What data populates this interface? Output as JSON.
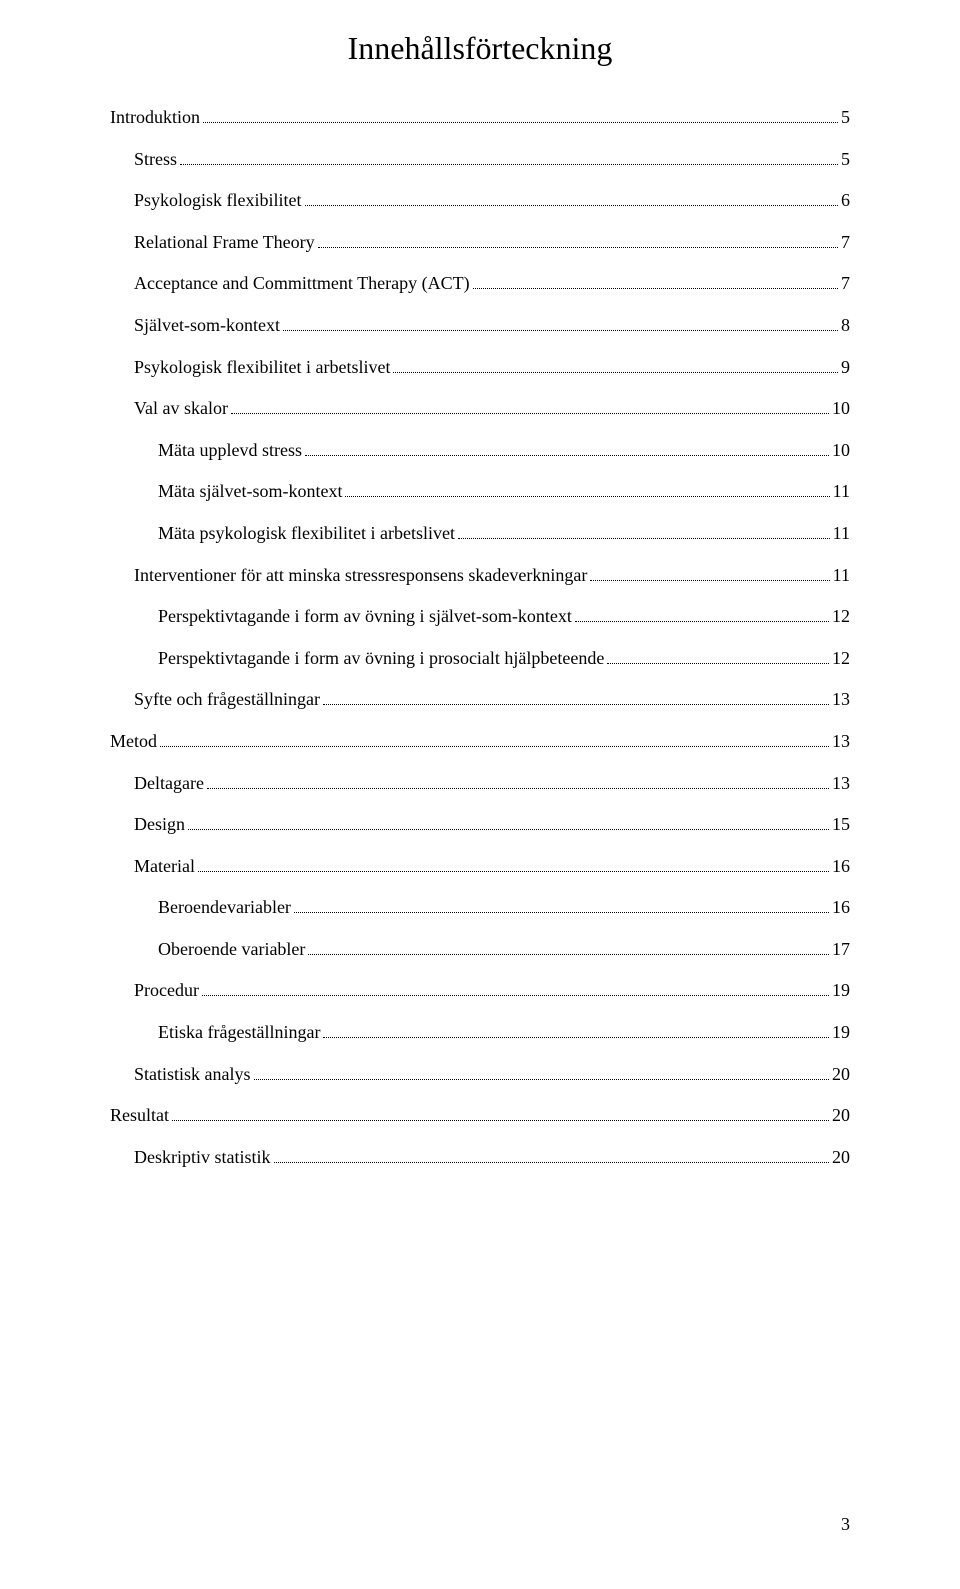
{
  "title": "Innehållsförteckning",
  "page_number": "3",
  "font": {
    "family": "Times New Roman",
    "title_size_pt": 24,
    "body_size_pt": 13
  },
  "colors": {
    "text": "#000000",
    "bg": "#ffffff",
    "dots": "#000000"
  },
  "toc": {
    "entries": [
      {
        "label": "Introduktion",
        "page": "5",
        "indent": 0
      },
      {
        "label": "Stress",
        "page": "5",
        "indent": 1
      },
      {
        "label": "Psykologisk flexibilitet",
        "page": "6",
        "indent": 1
      },
      {
        "label": "Relational Frame Theory",
        "page": "7",
        "indent": 1
      },
      {
        "label": "Acceptance and Committment Therapy (ACT)",
        "page": "7",
        "indent": 1
      },
      {
        "label": "Självet-som-kontext",
        "page": "8",
        "indent": 1
      },
      {
        "label": "Psykologisk flexibilitet i arbetslivet",
        "page": "9",
        "indent": 1
      },
      {
        "label": "Val av skalor",
        "page": "10",
        "indent": 1
      },
      {
        "label": "Mäta upplevd stress",
        "page": "10",
        "indent": 2
      },
      {
        "label": "Mäta självet-som-kontext",
        "page": "11",
        "indent": 2
      },
      {
        "label": "Mäta psykologisk flexibilitet i arbetslivet",
        "page": "11",
        "indent": 2
      },
      {
        "label": "Interventioner för att minska stressresponsens skadeverkningar",
        "page": "11",
        "indent": 1
      },
      {
        "label": "Perspektivtagande i form av övning i självet-som-kontext",
        "page": "12",
        "indent": 2
      },
      {
        "label": "Perspektivtagande i form av övning i prosocialt hjälpbeteende",
        "page": "12",
        "indent": 2
      },
      {
        "label": "Syfte och frågeställningar",
        "page": "13",
        "indent": 1
      },
      {
        "label": "Metod",
        "page": "13",
        "indent": 0
      },
      {
        "label": "Deltagare",
        "page": "13",
        "indent": 1
      },
      {
        "label": "Design",
        "page": "15",
        "indent": 1
      },
      {
        "label": "Material",
        "page": "16",
        "indent": 1
      },
      {
        "label": "Beroendevariabler",
        "page": "16",
        "indent": 2
      },
      {
        "label": "Oberoende variabler",
        "page": "17",
        "indent": 2
      },
      {
        "label": "Procedur",
        "page": "19",
        "indent": 1
      },
      {
        "label": "Etiska frågeställningar",
        "page": "19",
        "indent": 2
      },
      {
        "label": "Statistisk analys",
        "page": "20",
        "indent": 1
      },
      {
        "label": "Resultat",
        "page": "20",
        "indent": 0
      },
      {
        "label": "Deskriptiv statistik",
        "page": "20",
        "indent": 1
      }
    ]
  }
}
